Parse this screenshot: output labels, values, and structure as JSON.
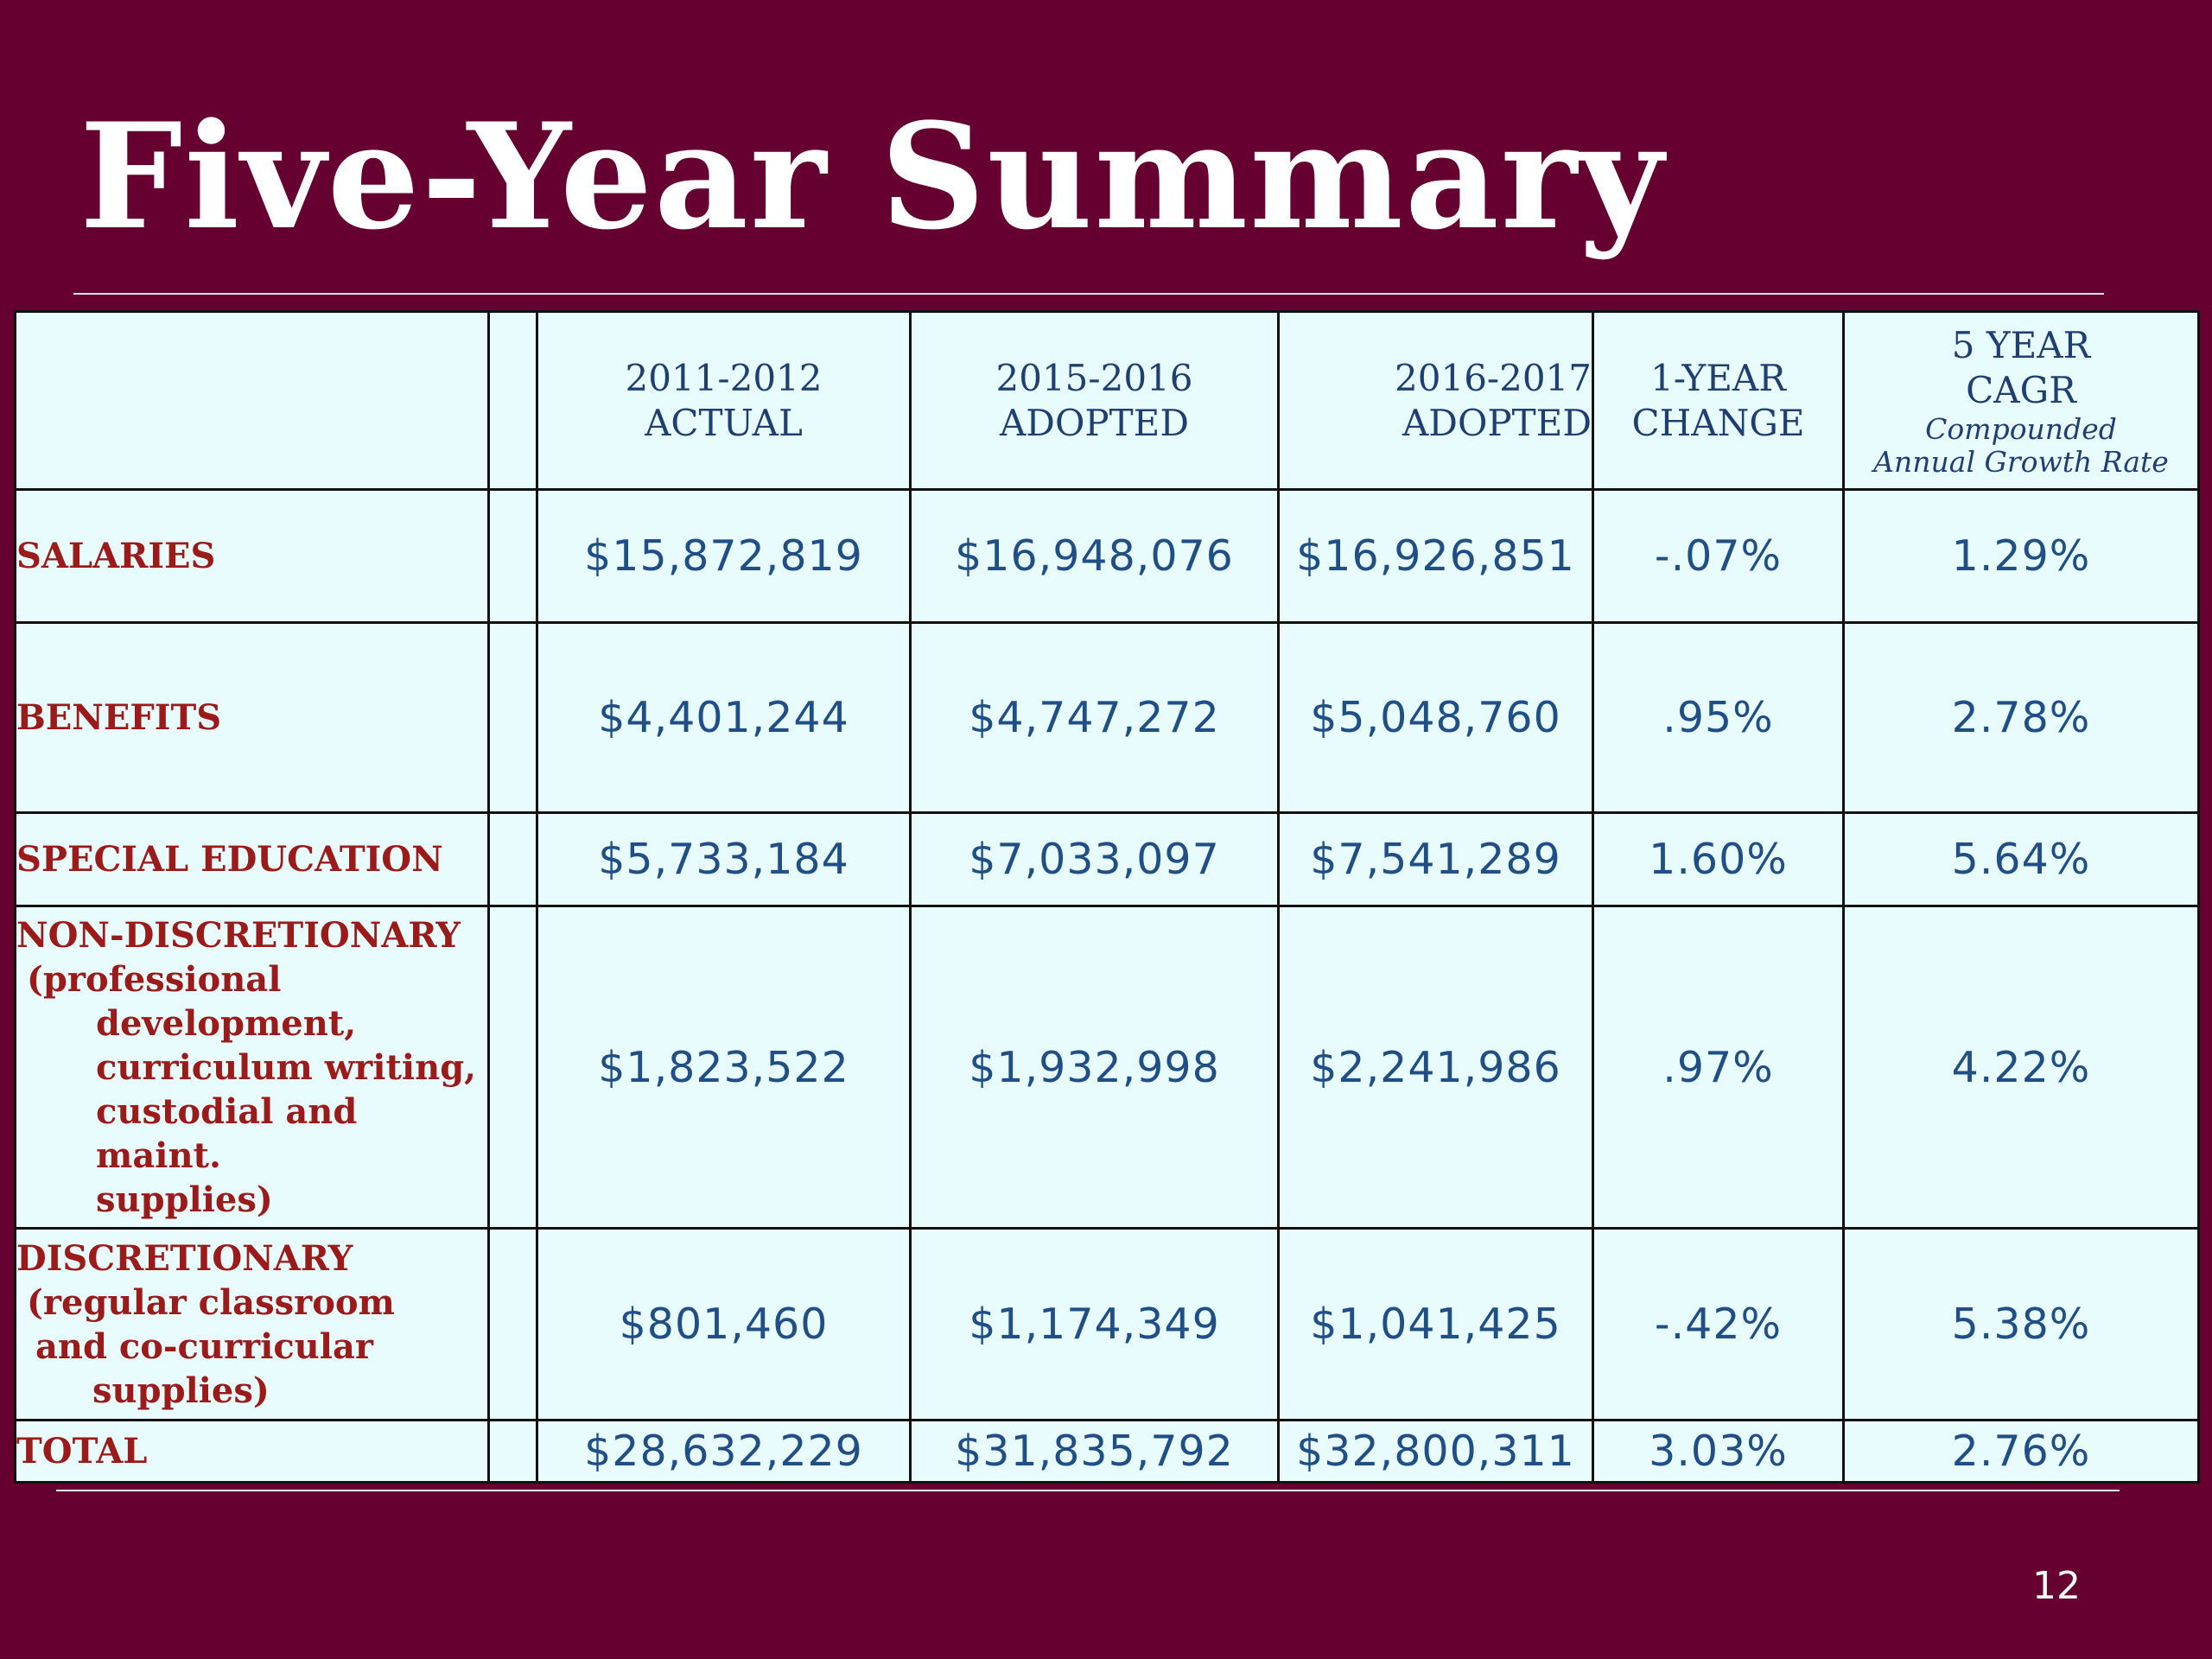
{
  "title": "Five-Year Summary",
  "page_number": "12",
  "table": {
    "headers": [
      {
        "lines": [
          "2011-2012",
          "ACTUAL"
        ]
      },
      {
        "lines": [
          "2015-2016",
          "ADOPTED"
        ]
      },
      {
        "lines": [
          "2016-2017",
          "ADOPTED"
        ]
      },
      {
        "lines": [
          "1-YEAR",
          "CHANGE"
        ]
      },
      {
        "lines": [
          "5 YEAR",
          "CAGR"
        ],
        "sub": [
          "Compounded",
          "Annual Growth Rate"
        ]
      }
    ],
    "rows": [
      {
        "label_lines": [
          "SALARIES"
        ],
        "values": [
          "$15,872,819",
          "$16,948,076",
          "$16,926,851",
          "-.07%",
          "1.29%"
        ]
      },
      {
        "label_lines": [
          "BENEFITS"
        ],
        "values": [
          "$4,401,244",
          "$4,747,272",
          "$5,048,760",
          ".95%",
          "2.78%"
        ]
      },
      {
        "label_lines": [
          "SPECIAL EDUCATION"
        ],
        "values": [
          "$5,733,184",
          "$7,033,097",
          "$7,541,289",
          "1.60%",
          "5.64%"
        ]
      },
      {
        "label_lines": [
          "NON-DISCRETIONARY",
          "(professional",
          "development,",
          "curriculum writing,",
          "custodial and maint.",
          "supplies)"
        ],
        "values": [
          "$1,823,522",
          "$1,932,998",
          "$2,241,986",
          ".97%",
          "4.22%"
        ]
      },
      {
        "label_lines": [
          "DISCRETIONARY",
          "(regular classroom",
          "and co-curricular",
          "supplies)"
        ],
        "values": [
          "$801,460",
          "$1,174,349",
          "$1,041,425",
          "-.42%",
          "5.38%"
        ]
      },
      {
        "label_lines": [
          "TOTAL"
        ],
        "values": [
          "$28,632,229",
          "$31,835,792",
          "$32,800,311",
          "3.03%",
          "2.76%"
        ]
      }
    ]
  },
  "colors": {
    "background": "#650030",
    "table_fill": "#e9fcfd",
    "label_text": "#9b1a1a",
    "value_text": "#1f4f86",
    "header_text": "#1f3f73"
  }
}
